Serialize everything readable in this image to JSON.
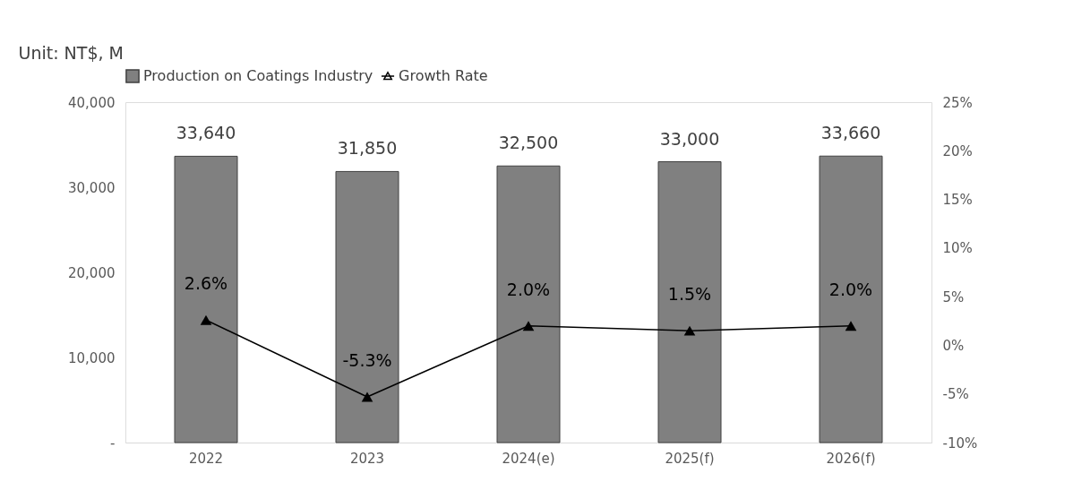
{
  "chart_data": {
    "type": "bar",
    "ylabel": "Unit: NT$, M",
    "categories": [
      "2022",
      "2023",
      "2024(e)",
      "2025(f)",
      "2026(f)"
    ],
    "series": [
      {
        "name": "Production on Coatings Industry",
        "color": "#808080",
        "values": [
          33640,
          31850,
          32500,
          33000,
          33660
        ],
        "value_labels": [
          "33,640",
          "31,850",
          "32,500",
          "33,000",
          "33,660"
        ]
      },
      {
        "name": "Growth Rate",
        "type": "line",
        "axis": "y2",
        "color": "#000000",
        "marker": "triangle",
        "values": [
          2.6,
          -5.3,
          2.0,
          1.5,
          2.0
        ],
        "value_labels": [
          "2.6%",
          "-5.3%",
          "2.0%",
          "1.5%",
          "2.0%"
        ]
      }
    ],
    "ylim": [
      0,
      40000
    ],
    "yticks": [
      {
        "value": 0,
        "label": "-"
      },
      {
        "value": 10000,
        "label": "10,000"
      },
      {
        "value": 20000,
        "label": "20,000"
      },
      {
        "value": 30000,
        "label": "30,000"
      },
      {
        "value": 40000,
        "label": "40,000"
      }
    ],
    "y2lim": [
      -10,
      25
    ],
    "y2ticks": [
      {
        "value": -10,
        "label": "-10%"
      },
      {
        "value": -5,
        "label": "-5%"
      },
      {
        "value": 0,
        "label": "0%"
      },
      {
        "value": 5,
        "label": "5%"
      },
      {
        "value": 10,
        "label": "10%"
      },
      {
        "value": 15,
        "label": "15%"
      },
      {
        "value": 20,
        "label": "20%"
      },
      {
        "value": 25,
        "label": "25%"
      }
    ],
    "grid": false,
    "legend": "top"
  }
}
